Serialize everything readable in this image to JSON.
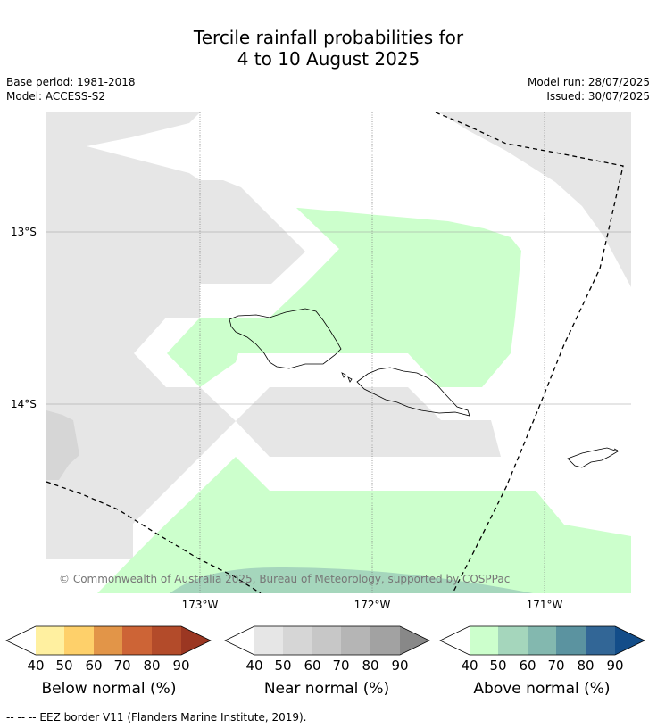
{
  "title_line1": "Tercile rainfall probabilities for",
  "title_line2": "4 to 10 August 2025",
  "base_period": "Base period: 1981-2018",
  "model": "Model: ACCESS-S2",
  "model_run": "Model run: 28/07/2025",
  "issued": "Issued: 30/07/2025",
  "copyright": "© Commonwealth of Australia 2025, Bureau of Meteorology, supported by COSPPac",
  "lat_labels": [
    "13°S",
    "14°S"
  ],
  "lon_labels": [
    "173°W",
    "172°W",
    "171°W"
  ],
  "colorbars": [
    {
      "title": "Below normal (%)",
      "ticks": [
        "40",
        "50",
        "60",
        "70",
        "80",
        "90"
      ],
      "colors": [
        "#ffffff",
        "#fff0a0",
        "#fed06a",
        "#e29548",
        "#cd6436",
        "#b34b2a",
        "#9b3722"
      ]
    },
    {
      "title": "Near normal (%)",
      "ticks": [
        "40",
        "50",
        "60",
        "70",
        "80",
        "90"
      ],
      "colors": [
        "#ffffff",
        "#e6e6e6",
        "#d6d6d6",
        "#c7c7c7",
        "#b5b5b5",
        "#a2a2a2",
        "#888888"
      ]
    },
    {
      "title": "Above normal (%)",
      "ticks": [
        "40",
        "50",
        "60",
        "70",
        "80",
        "90"
      ],
      "colors": [
        "#ffffff",
        "#ccffcc",
        "#a5d6bc",
        "#83b8af",
        "#5b93a0",
        "#326696",
        "#134d89"
      ]
    }
  ],
  "footer": "--  --  -- EEZ border V11 (Flanders Marine Institute, 2019).",
  "colors": {
    "near_normal_40": "#e6e6e6",
    "near_normal_50": "#d6d6d6",
    "above_normal_40": "#ccffcc",
    "above_normal_50": "#a5d6bc"
  }
}
